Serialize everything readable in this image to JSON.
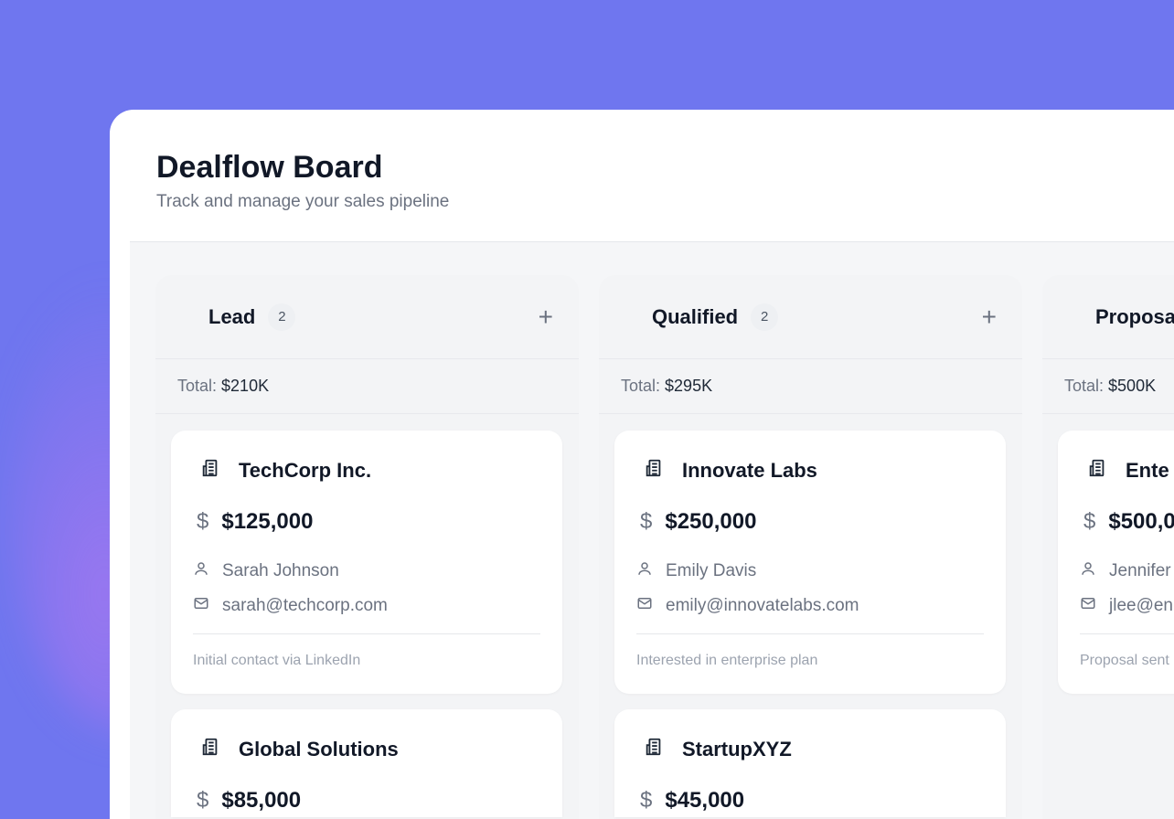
{
  "header": {
    "title": "Dealflow Board",
    "subtitle": "Track and manage your sales pipeline"
  },
  "colors": {
    "background": "#6f76ef",
    "panel": "#ffffff",
    "text": "#111827",
    "muted": "#6b7280"
  },
  "columns": [
    {
      "name": "Lead",
      "count": "2",
      "total_label": "Total:",
      "total": "$210K",
      "cards": [
        {
          "company": "TechCorp Inc.",
          "amount": "$125,000",
          "contact": "Sarah Johnson",
          "email": "sarah@techcorp.com",
          "note": "Initial contact via LinkedIn"
        },
        {
          "company": "Global Solutions",
          "amount": "$85,000"
        }
      ]
    },
    {
      "name": "Qualified",
      "count": "2",
      "total_label": "Total:",
      "total": "$295K",
      "cards": [
        {
          "company": "Innovate Labs",
          "amount": "$250,000",
          "contact": "Emily Davis",
          "email": "emily@innovatelabs.com",
          "note": "Interested in enterprise plan"
        },
        {
          "company": "StartupXYZ",
          "amount": "$45,000"
        }
      ]
    },
    {
      "name": "Proposa",
      "total_label": "Total:",
      "total": "$500K",
      "cards": [
        {
          "company": "Ente",
          "amount": "$500,0",
          "contact": "Jennifer",
          "email": "jlee@en",
          "note": "Proposal sent"
        }
      ]
    }
  ],
  "icons": {
    "company": "building-icon",
    "amount": "dollar-icon",
    "contact": "user-icon",
    "email": "mail-icon",
    "add": "plus-icon"
  }
}
